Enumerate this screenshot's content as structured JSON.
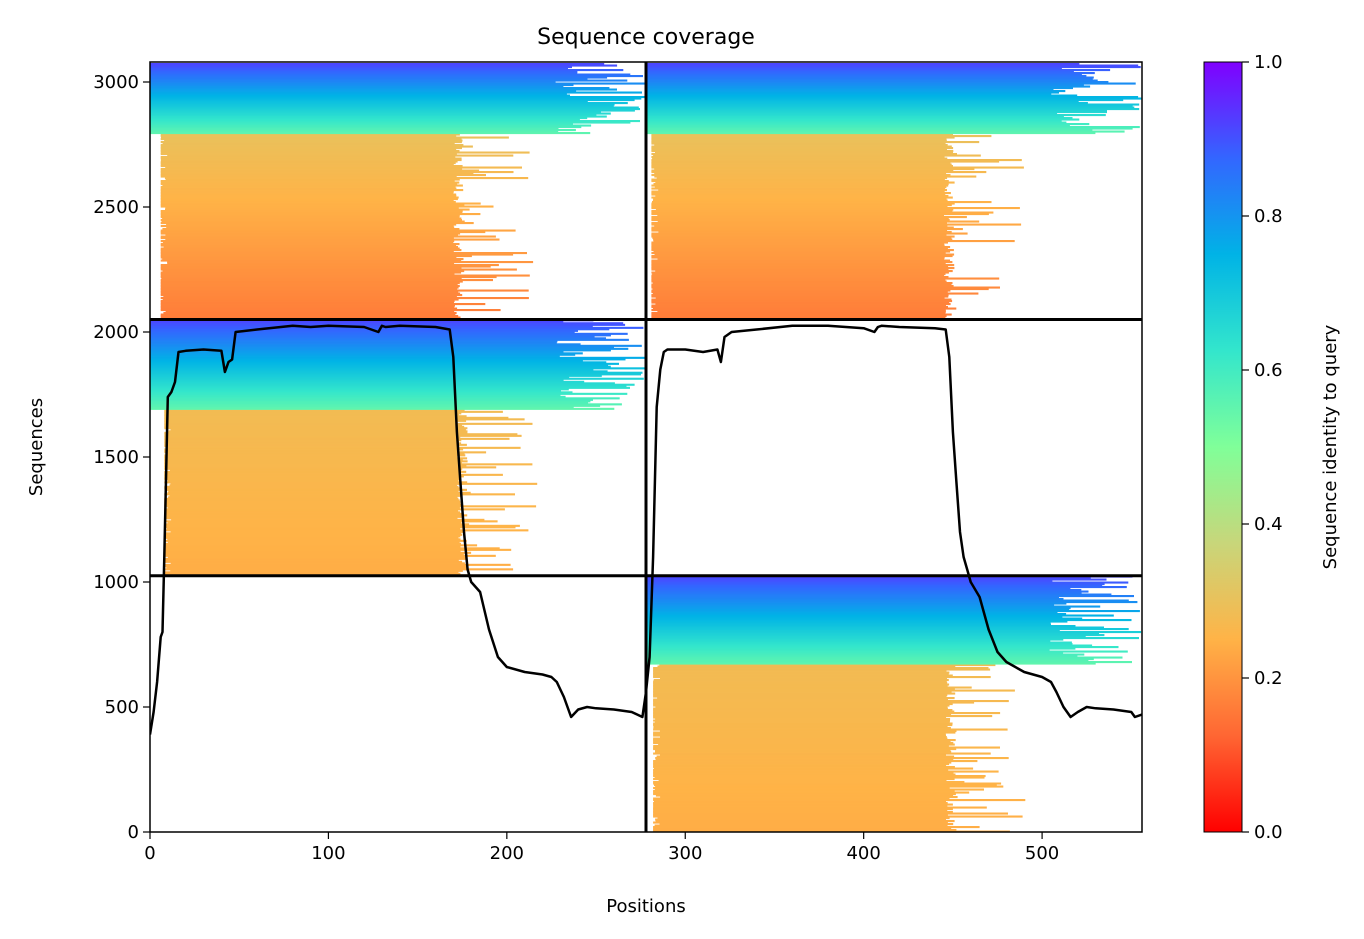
{
  "chart_data": {
    "type": "heatmap",
    "title": "Sequence coverage",
    "xlabel": "Positions",
    "ylabel": "Sequences",
    "xlim": [
      0,
      556
    ],
    "ylim": [
      0,
      3080
    ],
    "xticks": [
      0,
      100,
      200,
      300,
      400,
      500
    ],
    "yticks": [
      0,
      500,
      1000,
      1500,
      2000,
      2500,
      3000
    ],
    "colorbar": {
      "label": "Sequence identity to query",
      "range": [
        0.0,
        1.0
      ],
      "ticks": [
        0.0,
        0.2,
        0.4,
        0.6,
        0.8,
        1.0
      ],
      "colormap": "rainbow_r",
      "stops": [
        "#ff0000",
        "#ff6633",
        "#ffb347",
        "#c8d67a",
        "#80ff99",
        "#33e6cc",
        "#00b3e6",
        "#3366ff",
        "#8000ff"
      ]
    },
    "block_dividers": {
      "x": [
        278
      ],
      "y": [
        1025,
        2050
      ]
    },
    "blocks": [
      {
        "x0": 0,
        "x1": 278,
        "y0": 2050,
        "y1": 3075,
        "cov_x0": 6,
        "cov_x1": 176,
        "high_start": 2790,
        "high_x1": 278,
        "identity_low": 0.16,
        "identity_mid": 0.3,
        "identity_high_bottom": 0.55,
        "identity_high_top": 0.92
      },
      {
        "x0": 278,
        "x1": 556,
        "y0": 2050,
        "y1": 3075,
        "cov_x0": 281,
        "cov_x1": 451,
        "high_start": 2790,
        "high_x1": 556,
        "identity_low": 0.16,
        "identity_mid": 0.3,
        "identity_high_bottom": 0.55,
        "identity_high_top": 0.92
      },
      {
        "x0": 0,
        "x1": 278,
        "y0": 1025,
        "y1": 2050,
        "cov_x0": 8,
        "cov_x1": 178,
        "high_start": 1690,
        "high_x1": 278,
        "identity_low": 0.24,
        "identity_mid": 0.28,
        "identity_high_bottom": 0.55,
        "identity_high_top": 0.92
      },
      {
        "x0": 278,
        "x1": 556,
        "y0": 0,
        "y1": 1025,
        "cov_x0": 282,
        "cov_x1": 452,
        "high_start": 670,
        "high_x1": 556,
        "identity_low": 0.24,
        "identity_mid": 0.28,
        "identity_high_bottom": 0.55,
        "identity_high_top": 0.92
      }
    ],
    "series": [
      {
        "type": "line",
        "color": "#000000",
        "x": [
          0,
          2,
          4,
          6,
          7,
          8,
          10,
          12,
          14,
          16,
          20,
          30,
          40,
          42,
          44,
          46,
          48,
          60,
          80,
          90,
          100,
          120,
          128,
          130,
          132,
          140,
          160,
          168,
          170,
          172,
          174,
          176,
          178,
          180,
          185,
          190,
          195,
          200,
          210,
          220,
          225,
          228,
          232,
          236,
          240,
          245,
          250,
          260,
          270,
          276,
          278,
          280,
          282,
          284,
          286,
          288,
          290,
          300,
          310,
          318,
          320,
          322,
          326,
          340,
          360,
          380,
          400,
          406,
          408,
          410,
          420,
          440,
          446,
          448,
          450,
          452,
          454,
          456,
          458,
          460,
          465,
          470,
          475,
          480,
          490,
          500,
          505,
          508,
          512,
          516,
          520,
          525,
          530,
          540,
          550,
          552,
          556
        ],
        "y": [
          390,
          480,
          600,
          780,
          800,
          1100,
          1740,
          1760,
          1800,
          1920,
          1925,
          1930,
          1925,
          1840,
          1880,
          1890,
          2000,
          2010,
          2025,
          2020,
          2025,
          2020,
          2000,
          2025,
          2020,
          2025,
          2020,
          2010,
          1900,
          1600,
          1400,
          1200,
          1050,
          1000,
          960,
          810,
          700,
          660,
          640,
          630,
          620,
          600,
          540,
          460,
          490,
          500,
          495,
          490,
          480,
          460,
          560,
          700,
          1100,
          1700,
          1850,
          1920,
          1930,
          1930,
          1920,
          1930,
          1880,
          1980,
          2000,
          2010,
          2025,
          2025,
          2015,
          2000,
          2020,
          2025,
          2020,
          2015,
          2010,
          1900,
          1600,
          1400,
          1200,
          1100,
          1050,
          1000,
          940,
          810,
          720,
          680,
          640,
          620,
          600,
          560,
          500,
          460,
          480,
          500,
          495,
          490,
          480,
          460,
          470
        ]
      }
    ]
  }
}
